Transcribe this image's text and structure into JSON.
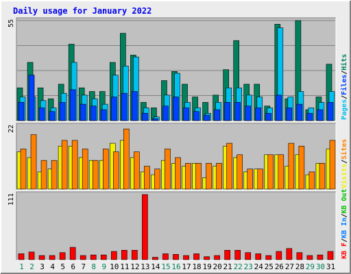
{
  "title": "Daily usage for January 2022",
  "colors": {
    "background": "#ececec",
    "panel": "#c0c0c0",
    "title_text": "#0000ee",
    "hits": "#00805c",
    "files": "#00c0f0",
    "pages": "#0040ff",
    "visits": "#f0f000",
    "sites": "#ff8000",
    "kb_f": "#ff0000",
    "kb_in": "#0080ff",
    "kb_out": "#00c000",
    "weekday_label": "#000000",
    "weekend_label": "#00805c"
  },
  "chart_data": {
    "type": "bar",
    "title": "Daily usage for January 2022",
    "x": [
      "1",
      "2",
      "3",
      "4",
      "5",
      "6",
      "7",
      "8",
      "9",
      "10",
      "11",
      "12",
      "13",
      "14",
      "15",
      "16",
      "17",
      "18",
      "19",
      "20",
      "21",
      "22",
      "23",
      "24",
      "25",
      "26",
      "27",
      "28",
      "29",
      "30",
      "31"
    ],
    "weekend_days": [
      "1",
      "2",
      "8",
      "9",
      "15",
      "16",
      "22",
      "23",
      "29",
      "30"
    ],
    "panels": [
      {
        "axis_max_label": "55",
        "ylim": [
          0,
          55
        ],
        "legend": [
          {
            "text": "Pages",
            "color": "#00c0f0"
          },
          {
            "text": "/",
            "color": "#000000"
          },
          {
            "text": "Files",
            "color": "#0040ff"
          },
          {
            "text": "/",
            "color": "#000000"
          },
          {
            "text": "Hits",
            "color": "#00805c"
          }
        ],
        "series": [
          {
            "name": "Hits",
            "color": "#00805c",
            "values": [
              18,
              32,
              18,
              12,
              20,
              42,
              18,
              16,
              16,
              32,
              48,
              36,
              10,
              7,
              22,
              27,
              20,
              13,
              10,
              14,
              28,
              44,
              20,
              20,
              8,
              53,
              12,
              55,
              6,
              13,
              31
            ]
          },
          {
            "name": "Files",
            "color": "#00c0f0",
            "values": [
              13,
              13,
              11,
              7,
              15,
              32,
              14,
              12,
              9,
              25,
              30,
              35,
              7,
              2,
              14,
              26,
              10,
              7,
              4,
              10,
              18,
              18,
              14,
              13,
              7,
              51,
              13,
              16,
              7,
              10,
              16
            ]
          },
          {
            "name": "Pages",
            "color": "#0040ff",
            "values": [
              10,
              25,
              7,
              5,
              10,
              17,
              9,
              8,
              6,
              13,
              15,
              16,
              4,
              1,
              8,
              13,
              7,
              5,
              3,
              6,
              10,
              10,
              8,
              7,
              4,
              14,
              7,
              9,
              4,
              6,
              10
            ]
          }
        ]
      },
      {
        "axis_max_label": "22",
        "ylim": [
          0,
          22
        ],
        "legend": [
          {
            "text": "Visits",
            "color": "#f0f000"
          },
          {
            "text": "/",
            "color": "#000000"
          },
          {
            "text": "Sites",
            "color": "#ff8000"
          }
        ],
        "series": [
          {
            "name": "Visits",
            "color": "#f0f000",
            "values": [
              13,
              11,
              6,
              7,
              15,
              15,
              11,
              10,
              10,
              16,
              17,
              11,
              6,
              5,
              10,
              9,
              8,
              9,
              4,
              8,
              15,
              11,
              6,
              7,
              12,
              12,
              8,
              12,
              5,
              9,
              14
            ]
          },
          {
            "name": "Sites",
            "color": "#ff8000",
            "values": [
              14,
              19,
              10,
              10,
              17,
              17,
              14,
              10,
              14,
              13,
              21,
              13,
              8,
              7,
              14,
              11,
              9,
              9,
              9,
              9,
              16,
              12,
              7,
              7,
              12,
              12,
              16,
              15,
              6,
              9,
              17
            ]
          }
        ]
      },
      {
        "axis_max_label": "111",
        "ylim": [
          0,
          111
        ],
        "legend": [
          {
            "text": "KB F",
            "color": "#ff0000"
          },
          {
            "text": "/",
            "color": "#000000"
          },
          {
            "text": "KB In",
            "color": "#0080ff"
          },
          {
            "text": "/",
            "color": "#000000"
          },
          {
            "text": "KB Out",
            "color": "#00c000"
          }
        ],
        "series": [
          {
            "name": "KB F",
            "color": "#ff0000",
            "values": [
              10,
              13,
              7,
              7,
              12,
              21,
              7,
              8,
              8,
              14,
              16,
              16,
              111,
              4,
              10,
              9,
              7,
              10,
              5,
              7,
              16,
              16,
              12,
              10,
              7,
              14,
              19,
              12,
              7,
              8,
              14
            ]
          }
        ]
      }
    ]
  }
}
